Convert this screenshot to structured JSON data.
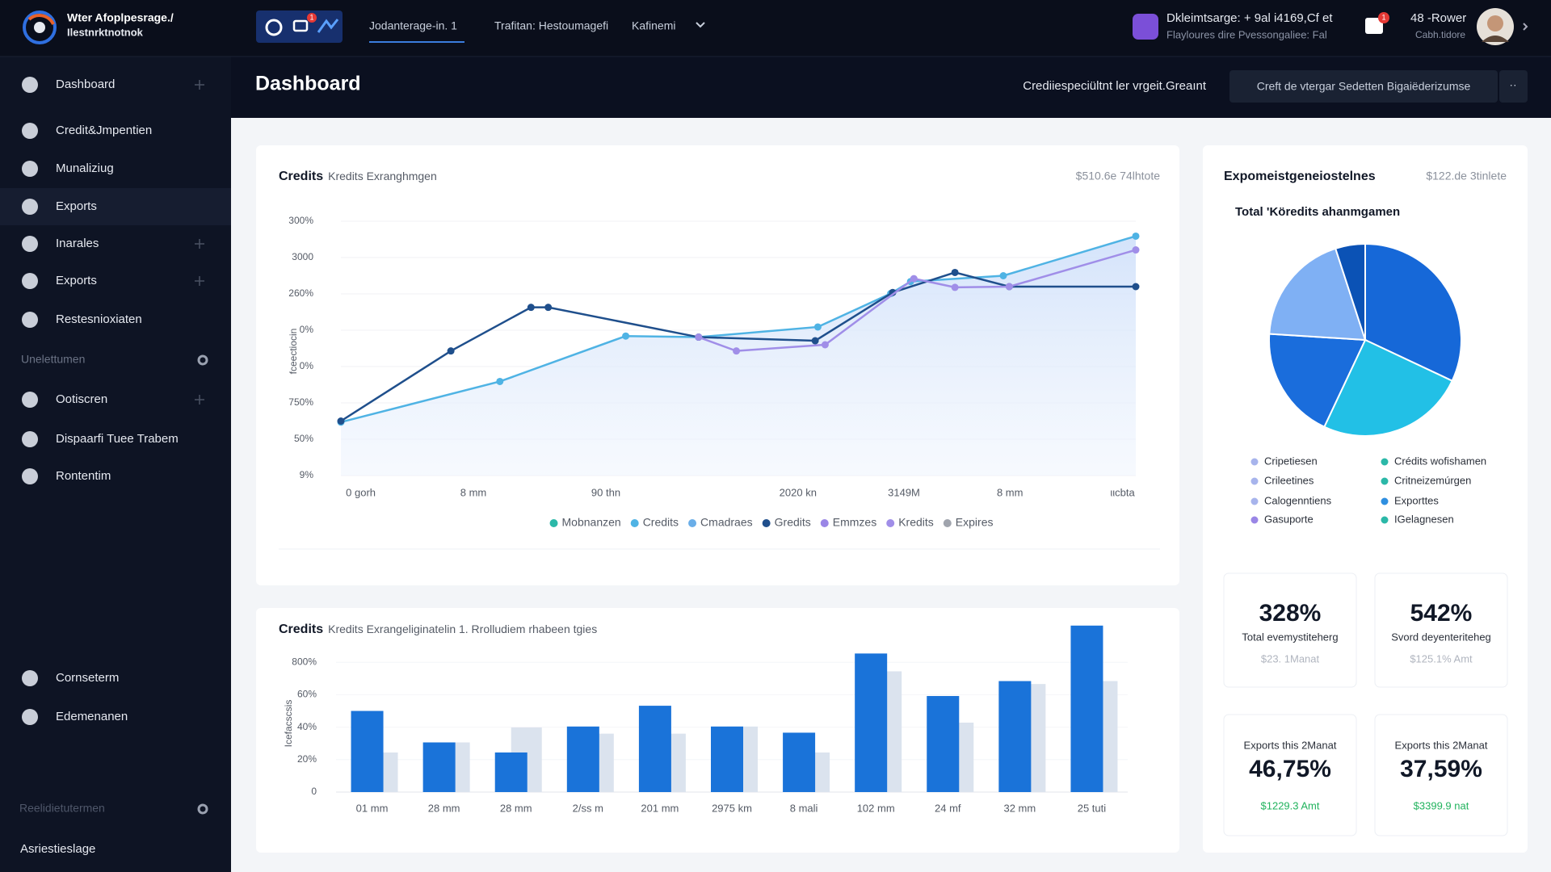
{
  "top_bar": {
    "brand": [
      "Wter Afoplpesrage./",
      "Ilestnrktnotnok"
    ],
    "tab_badge": "1",
    "tabs": [
      "Jodanterage-in. 1",
      "Trafitan: Hestoumagefi",
      "Kafinemi"
    ],
    "notice": [
      "Dkleimtsarge: + 9al i4169,Cf et",
      "Flayloures dire Pvessongaliee: Fal"
    ],
    "alert_badge": "1",
    "user": {
      "name": "48 -Rower",
      "role": "Cabh.tidore"
    }
  },
  "header": {
    "title": "Dashboard",
    "link": "Crediiespeciültnt ler vrgeit.Greaınt",
    "button": "Creft de vtergar Sedetten Bigaiëderizumse",
    "more": "··"
  },
  "sidebar": {
    "active": 3,
    "main": [
      {
        "label": "Dashboard",
        "expand": true
      },
      {
        "label": "Credit&Jmpentien",
        "expand": false
      },
      {
        "label": "Munaliziug",
        "expand": false
      },
      {
        "label": "Exports",
        "expand": false
      },
      {
        "label": "Inarales",
        "expand": true
      },
      {
        "label": "Exports",
        "expand": true
      },
      {
        "label": "Restesnioxiaten",
        "expand": false
      }
    ],
    "section_a": {
      "title": "Unelettumen",
      "items": [
        {
          "label": "Ootiscren",
          "expand": true
        },
        {
          "label": "Dispaarfi Tuee Trabem",
          "expand": false
        },
        {
          "label": "Rontentim",
          "expand": false
        }
      ]
    },
    "lower": [
      {
        "label": "Cornseterm",
        "expand": false
      },
      {
        "label": "Edemenanen",
        "expand": false
      }
    ],
    "section_b": {
      "title": "Reelidietutermen",
      "items": [
        "Asriestieslage"
      ]
    }
  },
  "line_chart": {
    "type": "line",
    "title": "Credits",
    "subtitle": "Kredits Exranghmgen",
    "summary": "$510.6e 74lhtote",
    "y_label": "fceectiocin",
    "xlim": [
      0,
      12
    ],
    "xticks": [
      {
        "value": 0.3,
        "label": "0 gorh"
      },
      {
        "value": 2,
        "label": "8 mm"
      },
      {
        "value": 4,
        "label": "90 thn"
      },
      {
        "value": 6.9,
        "label": "2020 kn"
      },
      {
        "value": 8.5,
        "label": "3149M"
      },
      {
        "value": 10.1,
        "label": "8 mm"
      },
      {
        "value": 11.8,
        "label": "ιιcbta"
      }
    ],
    "ylim": [
      0,
      7
    ],
    "yticks": [
      {
        "value": 0,
        "label": "9%"
      },
      {
        "value": 1,
        "label": "50%"
      },
      {
        "value": 2,
        "label": "750%"
      },
      {
        "value": 3,
        "label": "0%"
      },
      {
        "value": 4,
        "label": "0%"
      },
      {
        "value": 5,
        "label": "260%"
      },
      {
        "value": 6,
        "label": "3000"
      },
      {
        "value": 7,
        "label": "300%"
      }
    ],
    "series": [
      {
        "name": "Mobnanzen",
        "color": "#2bb8a8",
        "x": [],
        "values": []
      },
      {
        "name": "Credits",
        "color": "#4fb3e4",
        "area": true,
        "x": [
          0,
          2.4,
          4.3,
          5.4,
          7.2,
          8.3,
          8.6,
          10,
          12
        ],
        "values": [
          1.47,
          2.59,
          3.84,
          3.81,
          4.09,
          5.01,
          5.34,
          5.5,
          6.59
        ]
      },
      {
        "name": "Cmadraes",
        "color": "#6aaee8",
        "x": [],
        "values": []
      },
      {
        "name": "Gredits",
        "color": "#1f4f8c",
        "x": [
          0,
          1.66,
          2.87,
          3.13,
          5.4,
          7.16,
          8.33,
          9.27,
          10.09,
          12
        ],
        "values": [
          1.5,
          3.43,
          4.63,
          4.63,
          3.81,
          3.71,
          5.04,
          5.59,
          5.2,
          5.2
        ]
      },
      {
        "name": "Emmzes",
        "color": "#9a86e6",
        "x": [],
        "values": []
      },
      {
        "name": "Kredits",
        "color": "#a08ee8",
        "x": [
          5.4,
          5.97,
          7.31,
          8.65,
          9.27,
          10.09,
          12
        ],
        "values": [
          3.81,
          3.43,
          3.6,
          5.42,
          5.18,
          5.2,
          6.21
        ]
      },
      {
        "name": "Expires",
        "color": "#a0a4ad",
        "x": [],
        "values": []
      }
    ]
  },
  "bar_chart": {
    "type": "bar",
    "title": "Credits",
    "subtitle": "Kredits Exrangeliginatelin 1. Rrolludiem rhabeen tgies",
    "y_label": "Icefacscsis",
    "categories": [
      "01 mm",
      "28 mm",
      "28 mm",
      "2/ss m",
      "201 mm",
      "2975 km",
      "8 mali",
      "102 mm",
      "24 mf",
      "32 mm",
      "25 tuti"
    ],
    "ylim": [
      0,
      5.2
    ],
    "yticks": [
      0,
      {
        "value": 1,
        "label": "20%"
      },
      {
        "value": 2,
        "label": "40%"
      },
      {
        "value": 3,
        "label": "60%"
      },
      {
        "value": 4,
        "label": "800%"
      }
    ],
    "series": [
      {
        "color": "#dbe3ee",
        "values": [
          1.22,
          1.53,
          1.99,
          1.8,
          1.8,
          2.02,
          1.22,
          3.72,
          2.14,
          3.33,
          3.42
        ]
      },
      {
        "color": "#1a73d9",
        "values": [
          2.5,
          1.53,
          1.22,
          2.02,
          2.66,
          2.02,
          1.83,
          4.27,
          2.96,
          3.42,
          5.13
        ]
      }
    ]
  },
  "pie_chart": {
    "type": "pie",
    "title": "Expomeistgeneiostelnes",
    "summary": "$122.de 3tinlete",
    "subtitle": "Total 'Köredits ahanmgamen",
    "values": [
      32,
      25,
      19,
      19,
      5
    ],
    "colors": [
      "#1668d8",
      "#22c0e6",
      "#1a6ddc",
      "#7fb0f4",
      "#0b52b5"
    ],
    "legend": [
      {
        "name": "Cripetiesen",
        "color": "#a7b4ec"
      },
      {
        "name": "Crileetines",
        "color": "#a7b4ec"
      },
      {
        "name": "Calogenntiens",
        "color": "#a7b4ec"
      },
      {
        "name": "Gasuporte",
        "color": "#9a86e6"
      },
      {
        "name": "Crédits wofishamen",
        "color": "#2bb8a8"
      },
      {
        "name": "Critneizemúrgen",
        "color": "#2bb8a8"
      },
      {
        "name": "Exporttes",
        "color": "#2f8fe0"
      },
      {
        "name": "IGelagnesen",
        "color": "#2bb8a8"
      }
    ]
  },
  "stats": [
    {
      "value": "328%",
      "label": "Total evemystiteherg",
      "sub": "$23. 1Manat"
    },
    {
      "value": "542%",
      "label": "Svord deyenteriteheg",
      "sub": "$125.1% Amt"
    }
  ],
  "stats2": [
    {
      "label": "Exports this 2Manat",
      "value": "46,75%",
      "sub": "$1229.3 Amt"
    },
    {
      "label": "Exports this 2Manat",
      "value": "37,59%",
      "sub": "$3399.9 nat"
    }
  ]
}
